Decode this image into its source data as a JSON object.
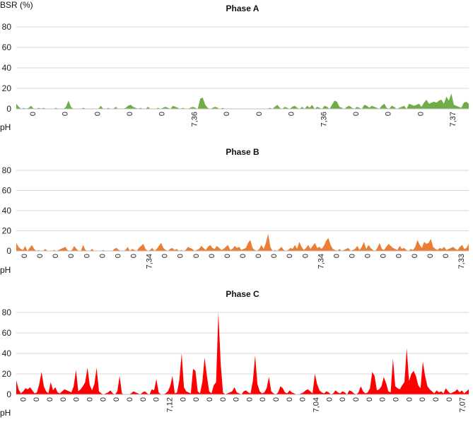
{
  "chart_data": [
    {
      "type": "area",
      "title": "Phase A",
      "ylabel": "BSR (%)",
      "xlabel": "pH",
      "ylim": [
        0,
        80
      ],
      "yticks": [
        0,
        20,
        40,
        60,
        80
      ],
      "grid": true,
      "color": "#70ad47",
      "x_tick_labels": [
        "0",
        "0",
        "0",
        "0",
        "0",
        "7,36",
        "0",
        "0",
        "0",
        "7,36",
        "0",
        "0",
        "0",
        "7,37"
      ],
      "values": [
        5,
        2,
        0,
        1,
        0,
        1,
        3,
        0,
        0,
        1,
        0,
        1,
        0,
        0,
        0,
        0,
        1,
        0,
        0,
        0,
        2,
        8,
        2,
        0,
        0,
        0,
        0,
        1,
        0,
        0,
        0,
        0,
        0,
        0,
        3,
        0,
        0,
        1,
        0,
        0,
        2,
        0,
        0,
        0,
        1,
        3,
        4,
        2,
        1,
        0,
        1,
        0,
        0,
        2,
        0,
        0,
        0,
        1,
        0,
        1,
        2,
        1,
        0,
        3,
        2,
        1,
        0,
        1,
        0,
        0,
        1,
        2,
        1,
        0,
        10,
        11,
        4,
        1,
        0,
        1,
        2,
        1,
        0,
        1,
        0,
        0,
        0,
        0,
        0,
        0,
        0,
        0,
        0,
        0,
        0,
        0,
        0,
        0,
        0,
        0,
        0,
        0,
        1,
        0,
        2,
        4,
        1,
        0,
        2,
        1,
        0,
        2,
        3,
        1,
        0,
        2,
        0,
        3,
        1,
        4,
        0,
        2,
        1,
        0,
        3,
        2,
        0,
        4,
        8,
        7,
        2,
        1,
        0,
        2,
        3,
        1,
        0,
        2,
        1,
        0,
        4,
        3,
        1,
        3,
        2,
        1,
        0,
        3,
        5,
        1,
        0,
        3,
        2,
        0,
        1,
        2,
        3,
        0,
        5,
        4,
        3,
        4,
        5,
        2,
        6,
        9,
        5,
        6,
        7,
        6,
        8,
        9,
        5,
        12,
        8,
        15,
        4,
        3,
        2,
        1,
        6,
        7,
        5
      ]
    },
    {
      "type": "area",
      "title": "Phase B",
      "ylabel": "",
      "xlabel": "pH",
      "ylim": [
        0,
        80
      ],
      "yticks": [
        0,
        20,
        40,
        60,
        80
      ],
      "grid": true,
      "color": "#ed7d31",
      "x_tick_labels": [
        "0",
        "0",
        "0",
        "0",
        "0",
        "0",
        "0",
        "0",
        "7,34",
        "0",
        "0",
        "0",
        "0",
        "0",
        "0",
        "0",
        "0",
        "0",
        "0",
        "7,34",
        "0",
        "0",
        "0",
        "0",
        "0",
        "0",
        "0",
        "0",
        "7,33"
      ],
      "values": [
        8,
        4,
        2,
        1,
        5,
        0,
        3,
        6,
        2,
        0,
        1,
        0,
        0,
        2,
        0,
        0,
        0,
        1,
        0,
        1,
        2,
        3,
        4,
        1,
        0,
        1,
        5,
        2,
        0,
        0,
        6,
        1,
        0,
        0,
        2,
        0,
        0,
        0,
        0,
        1,
        0,
        0,
        0,
        0,
        2,
        3,
        1,
        0,
        0,
        1,
        4,
        0,
        2,
        1,
        0,
        3,
        5,
        7,
        2,
        0,
        1,
        3,
        0,
        2,
        5,
        8,
        3,
        1,
        0,
        2,
        3,
        1,
        2,
        0,
        1,
        0,
        1,
        4,
        3,
        2,
        0,
        1,
        2,
        5,
        3,
        1,
        4,
        6,
        3,
        2,
        5,
        3,
        1,
        2,
        4,
        6,
        1,
        2,
        5,
        3,
        4,
        1,
        2,
        3,
        8,
        11,
        3,
        1,
        0,
        2,
        6,
        2,
        8,
        17,
        4,
        0,
        1,
        0,
        2,
        4,
        1,
        0,
        1,
        3,
        2,
        6,
        2,
        9,
        4,
        1,
        3,
        6,
        2,
        5,
        8,
        3,
        4,
        2,
        5,
        10,
        13,
        6,
        2,
        1,
        0,
        2,
        0,
        1,
        2,
        3,
        0,
        1,
        2,
        5,
        1,
        4,
        9,
        2,
        6,
        3,
        1,
        0,
        3,
        8,
        2,
        1,
        4,
        7,
        5,
        3,
        2,
        1,
        5,
        2,
        3,
        1,
        0,
        2,
        1,
        4,
        11,
        6,
        3,
        9,
        7,
        8,
        12,
        4,
        2,
        1,
        3,
        2,
        4,
        1,
        2,
        3,
        4,
        2,
        1,
        4,
        6,
        2,
        3,
        7
      ]
    },
    {
      "type": "area",
      "title": "Phase C",
      "ylabel": "",
      "xlabel": "pH",
      "ylim": [
        0,
        80
      ],
      "yticks": [
        0,
        20,
        40,
        60,
        80
      ],
      "grid": true,
      "color": "#ff0000",
      "x_tick_labels": [
        "0",
        "0",
        "0",
        "0",
        "0",
        "0",
        "0",
        "0",
        "0",
        "0",
        "0",
        "7,12",
        "0",
        "0",
        "0",
        "0",
        "0",
        "0",
        "0",
        "0",
        "0",
        "0",
        "7,04",
        "0",
        "0",
        "0",
        "0",
        "0",
        "0",
        "0",
        "0",
        "0",
        "0",
        "7,07"
      ],
      "values": [
        14,
        5,
        1,
        3,
        6,
        5,
        7,
        4,
        1,
        2,
        10,
        22,
        8,
        3,
        1,
        12,
        4,
        7,
        2,
        1,
        3,
        5,
        4,
        3,
        2,
        8,
        24,
        3,
        5,
        8,
        12,
        26,
        9,
        4,
        10,
        26,
        3,
        1,
        0,
        1,
        2,
        4,
        1,
        0,
        3,
        18,
        1,
        0,
        0,
        0,
        1,
        3,
        2,
        1,
        0,
        2,
        3,
        1,
        0,
        5,
        4,
        15,
        2,
        0,
        0,
        1,
        3,
        8,
        18,
        1,
        2,
        14,
        40,
        7,
        3,
        2,
        1,
        25,
        23,
        3,
        1,
        12,
        36,
        18,
        3,
        1,
        9,
        12,
        80,
        30,
        2,
        0,
        1,
        2,
        3,
        7,
        2,
        1,
        0,
        3,
        4,
        2,
        1,
        13,
        38,
        10,
        3,
        1,
        2,
        6,
        17,
        3,
        1,
        0,
        2,
        8,
        6,
        2,
        1,
        4,
        2,
        1,
        0,
        0,
        1,
        2,
        4,
        5,
        3,
        1,
        20,
        10,
        4,
        2,
        1,
        3,
        2,
        0,
        1,
        4,
        2,
        1,
        3,
        2,
        0,
        4,
        3,
        1,
        0,
        2,
        8,
        3,
        1,
        2,
        6,
        22,
        18,
        4,
        5,
        8,
        17,
        11,
        3,
        2,
        35,
        8,
        6,
        5,
        9,
        12,
        45,
        13,
        20,
        23,
        18,
        9,
        6,
        32,
        18,
        8,
        5,
        3,
        1,
        4,
        2,
        3,
        1,
        6,
        3,
        1,
        2,
        3,
        5,
        2,
        4,
        1,
        3,
        5
      ]
    }
  ]
}
